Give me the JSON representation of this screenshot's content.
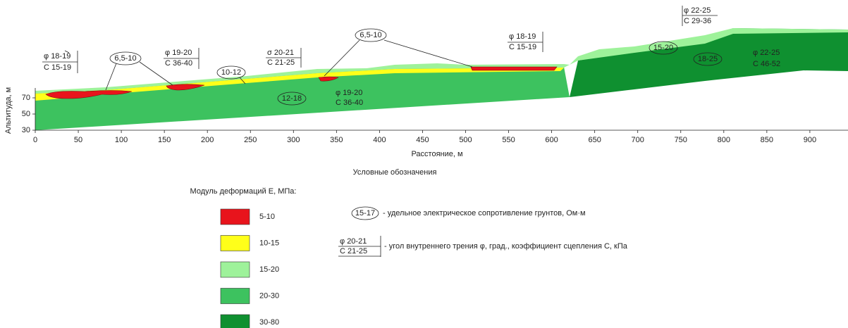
{
  "axis": {
    "x_label": "Расстояние, м",
    "y_label": "Альтитуда, м",
    "x_ticks": [
      0,
      50,
      100,
      150,
      200,
      250,
      300,
      350,
      400,
      450,
      500,
      550,
      600,
      650,
      700,
      750,
      800,
      850,
      900
    ],
    "y_ticks": [
      30,
      50,
      70
    ]
  },
  "resistivity_labels": [
    "6,5-10",
    "10-12",
    "6,5-10",
    "12-18",
    "15-20",
    "18-25"
  ],
  "strength_labels": [
    {
      "phi": "φ 18-19",
      "c": "С 15-19"
    },
    {
      "phi": "φ 19-20",
      "c": "С 36-40"
    },
    {
      "phi": "σ 20-21",
      "c": "С 21-25"
    },
    {
      "phi": "φ 19-20",
      "c": "С 36-40"
    },
    {
      "phi": "φ 18-19",
      "c": "С 15-19"
    },
    {
      "phi": "φ 22-25",
      "c": "С 29-36"
    },
    {
      "phi": "φ 22-25",
      "c": "С 46-52"
    }
  ],
  "legend": {
    "title": "Условные обозначения",
    "modulus_title": "Модуль деформаций Е, МПа:",
    "modulus_classes": [
      "5-10",
      "10-15",
      "15-20",
      "20-30",
      "30-80"
    ],
    "resistivity_example": "15-17",
    "resistivity_text": "- удельное электрическое сопротивление грунтов, Ом·м",
    "strength_example": {
      "phi": "φ 20-21",
      "c": "С 21-25"
    },
    "strength_text": "- угол внутреннего трения φ, град., коэффициент сцепления С, кПа"
  }
}
